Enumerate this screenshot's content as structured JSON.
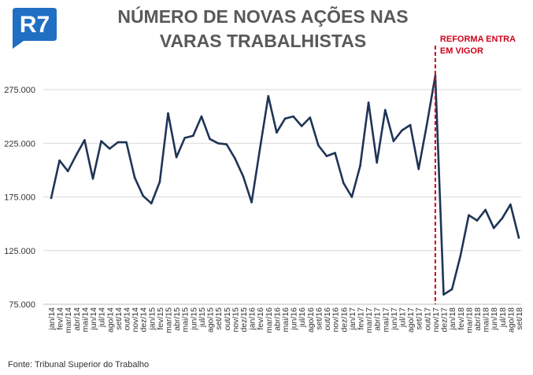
{
  "logo": {
    "text": "R7",
    "color": "#1f6fc3"
  },
  "title_lines": [
    "NÚMERO DE NOVAS AÇÕES NAS",
    "VARAS TRABALHISTAS"
  ],
  "source": "Fonte: Tribunal Superior do Trabalho",
  "annotation": {
    "lines": [
      "REFORMA ENTRA",
      "EM VIGOR"
    ],
    "color": "#d0021b",
    "at_category": "nov/17"
  },
  "colors": {
    "line": "#1f3556",
    "grid": "#d9d9d9",
    "axis_text": "#333333"
  },
  "chart_data": {
    "type": "line",
    "title": "NÚMERO DE NOVAS AÇÕES NAS VARAS TRABALHISTAS",
    "xlabel": "",
    "ylabel": "",
    "ylim": [
      75000,
      300000
    ],
    "yticks": [
      75000,
      125000,
      175000,
      225000,
      275000
    ],
    "ytick_labels": [
      "75.000",
      "125.000",
      "175.000",
      "225.000",
      "275.000"
    ],
    "grid": "horizontal",
    "categories": [
      "jan/14",
      "fev/14",
      "mar/14",
      "abr/14",
      "mai/14",
      "jun/14",
      "jul/14",
      "ago/14",
      "set/14",
      "out/14",
      "nov/14",
      "dez/14",
      "jan/15",
      "fev/15",
      "mar/15",
      "abr/15",
      "mai/15",
      "jun/15",
      "jul/15",
      "ago/15",
      "set/15",
      "out/15",
      "nov/15",
      "dez/15",
      "jan/16",
      "fev/16",
      "mar/16",
      "abr/16",
      "mai/16",
      "jun/16",
      "jul/16",
      "ago/16",
      "set/16",
      "out/16",
      "nov/16",
      "dez/16",
      "jan/17",
      "fev/17",
      "mar/17",
      "abr/17",
      "mai/17",
      "jun/17",
      "jul/17",
      "ago/17",
      "set/17",
      "out/17",
      "nov/17",
      "dez/17",
      "jan/18",
      "fev/18",
      "mar/18",
      "abr/18",
      "mai/18",
      "jun/18",
      "jul/18",
      "ago/18",
      "set/18"
    ],
    "values": [
      174000,
      209000,
      199000,
      214000,
      228000,
      192000,
      227000,
      220000,
      226000,
      226000,
      193000,
      176000,
      169000,
      189000,
      253000,
      212000,
      230000,
      232000,
      250000,
      229000,
      225000,
      224000,
      211000,
      194000,
      170000,
      220000,
      269000,
      235000,
      248000,
      250000,
      241000,
      249000,
      223000,
      213000,
      216000,
      188000,
      175000,
      204000,
      263000,
      207000,
      256000,
      227000,
      237000,
      242000,
      201000,
      243000,
      288000,
      84000,
      89000,
      120000,
      158000,
      153000,
      163000,
      146000,
      155000,
      168000,
      137000
    ]
  }
}
